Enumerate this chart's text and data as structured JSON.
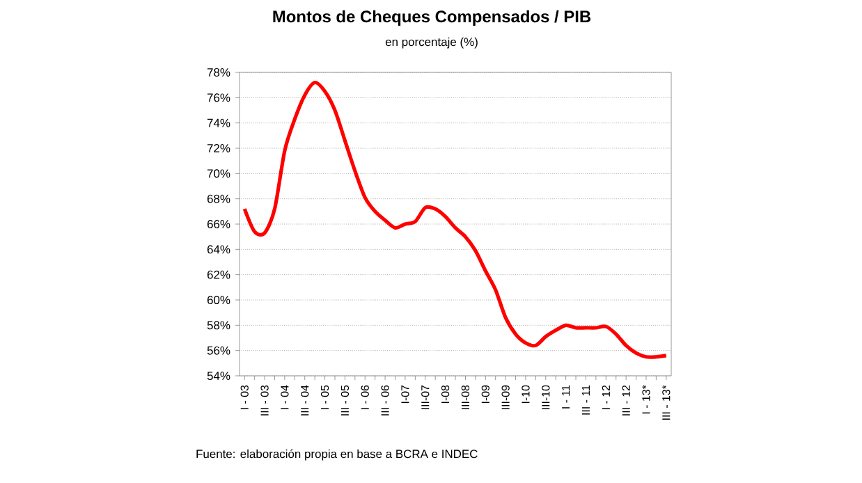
{
  "chart_data": {
    "type": "line",
    "title": "Montos de Cheques Compensados / PIB",
    "subtitle": "en porcentaje (%)",
    "categories": [
      "I - 03",
      null,
      "III - 03",
      null,
      "I - 04",
      null,
      "III - 04",
      null,
      "I - 05",
      null,
      "III - 05",
      null,
      "I - 06",
      null,
      "III - 06",
      null,
      "I-07",
      null,
      "III-07",
      null,
      "I-08",
      null,
      "III-08",
      null,
      "I-09",
      null,
      "III-09",
      null,
      "I-10",
      null,
      "III-10",
      null,
      "I - 11",
      null,
      "III - 11",
      null,
      "I - 12",
      null,
      "III - 12",
      null,
      "I - 13*",
      null,
      "III - 13*"
    ],
    "series": [
      {
        "color": "#ff0000",
        "values": [
          67.2,
          65.4,
          65.3,
          67.2,
          71.8,
          74.3,
          76.2,
          77.2,
          76.5,
          75.0,
          72.6,
          70.2,
          68.1,
          67.0,
          66.3,
          65.7,
          66.0,
          66.2,
          67.3,
          67.2,
          66.6,
          65.7,
          65.0,
          63.9,
          62.3,
          60.8,
          58.6,
          57.3,
          56.6,
          56.4,
          57.1,
          57.6,
          58.0,
          57.8,
          57.8,
          57.8,
          57.9,
          57.3,
          56.4,
          55.8,
          55.5,
          55.5,
          55.6
        ]
      }
    ],
    "ylim": [
      54,
      78
    ],
    "yticks": [
      {
        "value": 54,
        "label": "54%"
      },
      {
        "value": 56,
        "label": "56%"
      },
      {
        "value": 58,
        "label": "58%"
      },
      {
        "value": 60,
        "label": "60%"
      },
      {
        "value": 62,
        "label": "62%"
      },
      {
        "value": 64,
        "label": "64%"
      },
      {
        "value": 66,
        "label": "66%"
      },
      {
        "value": 68,
        "label": "68%"
      },
      {
        "value": 70,
        "label": "70%"
      },
      {
        "value": 72,
        "label": "72%"
      },
      {
        "value": 74,
        "label": "74%"
      },
      {
        "value": 76,
        "label": "76%"
      },
      {
        "value": 78,
        "label": "78%"
      }
    ],
    "grid": "y",
    "marker": "none",
    "line_style": "solid",
    "annotations": [
      "Fuente: elaboración propia en base a BCRA e INDEC"
    ]
  }
}
